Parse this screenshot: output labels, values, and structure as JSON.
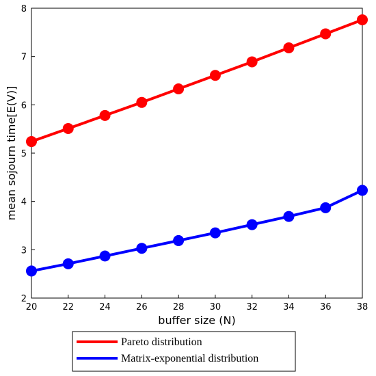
{
  "chart_data": {
    "type": "line",
    "title": "",
    "xlabel": "buffer size (N)",
    "ylabel": "mean sojourn time[E(V)]",
    "x": [
      20,
      22,
      24,
      26,
      28,
      30,
      32,
      34,
      36,
      38
    ],
    "xlim": [
      20,
      38
    ],
    "ylim": [
      2,
      8
    ],
    "xticks": [
      20,
      22,
      24,
      26,
      28,
      30,
      32,
      34,
      36,
      38
    ],
    "yticks": [
      2,
      3,
      4,
      5,
      6,
      7,
      8
    ],
    "grid": false,
    "legend_position": "bottom",
    "series": [
      {
        "name": "Pareto distribution",
        "color": "#ff0000",
        "values": [
          5.24,
          5.51,
          5.78,
          6.05,
          6.33,
          6.61,
          6.89,
          7.18,
          7.47,
          7.76
        ]
      },
      {
        "name": "Matrix-exponential distribution",
        "color": "#0000ff",
        "values": [
          2.56,
          2.71,
          2.87,
          3.03,
          3.19,
          3.35,
          3.52,
          3.69,
          3.87,
          4.23
        ]
      }
    ]
  }
}
